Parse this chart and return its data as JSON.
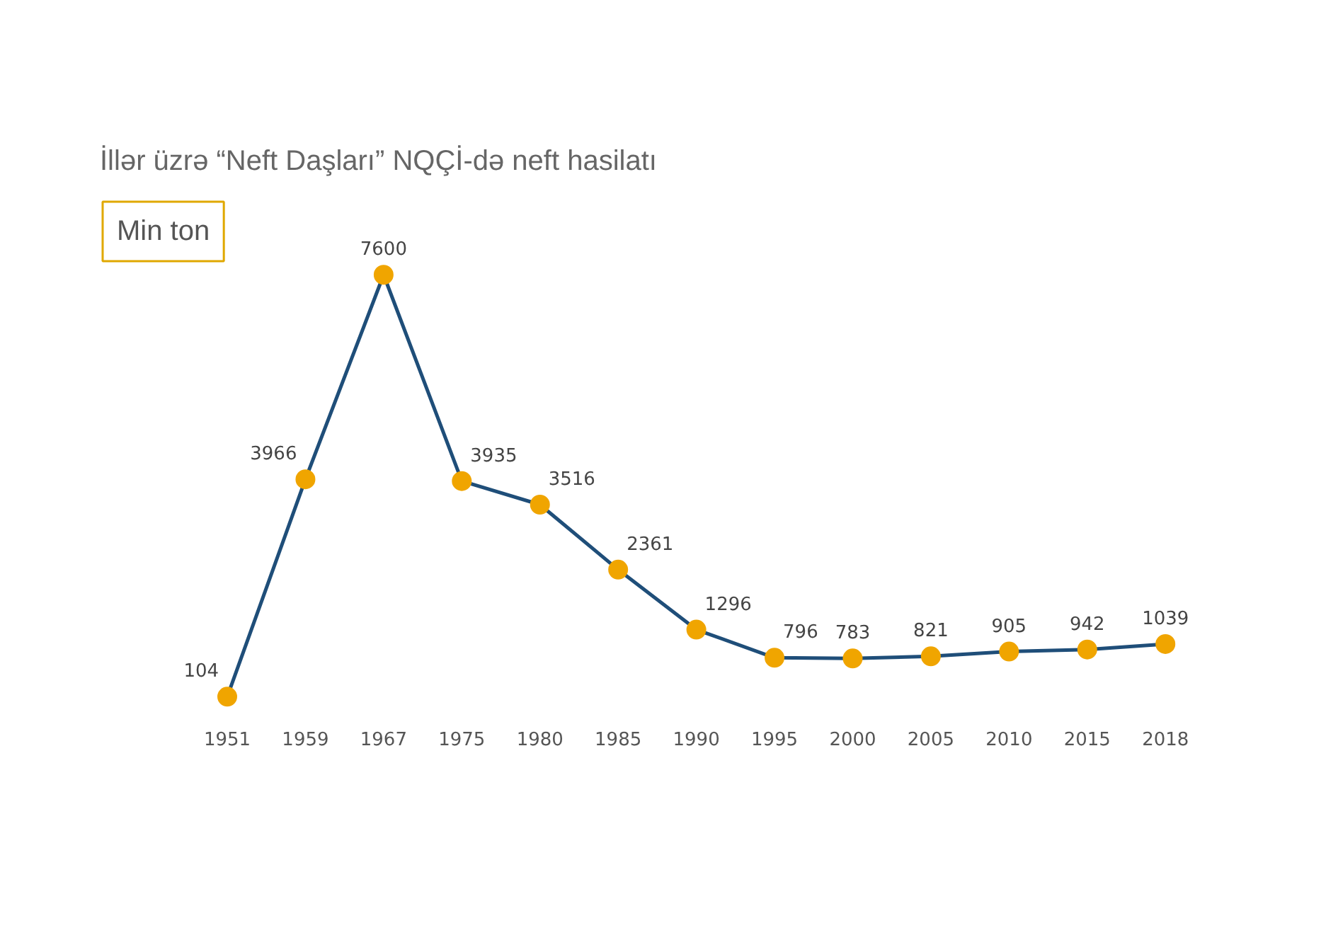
{
  "chart_data": {
    "type": "line",
    "title": "İllər üzrə “Neft Daşları” NQÇİ-də neft hasilatı",
    "ylabel": "Min ton",
    "categories": [
      "1951",
      "1959",
      "1967",
      "1975",
      "1980",
      "1985",
      "1990",
      "1995",
      "2000",
      "2005",
      "2010",
      "2015",
      "2018"
    ],
    "series": [
      {
        "color": "#1f4e79",
        "colors": [
          "#f0a500",
          "#f0a500",
          "#f0a500",
          "#f0a500",
          "#f0a500",
          "#f0a500",
          "#f0a500",
          "#f0a500",
          "#f0a500",
          "#f0a500",
          "#f0a500",
          "#f0a500",
          "#f0a500"
        ],
        "values": [
          104,
          3966,
          7600,
          3935,
          3516,
          2361,
          1296,
          796,
          783,
          821,
          905,
          942,
          1039
        ]
      }
    ],
    "marker": "circle",
    "line_style": "solid",
    "data_labels": true,
    "grid": false
  }
}
